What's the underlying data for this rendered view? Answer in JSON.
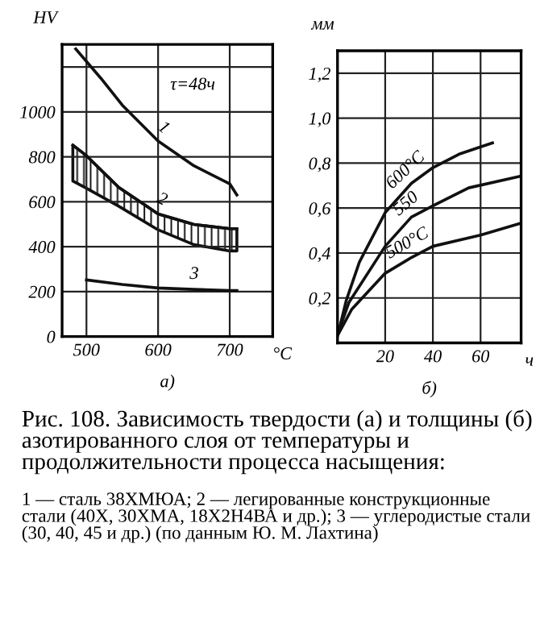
{
  "chart_data": [
    {
      "type": "line",
      "xlabel": "°C",
      "ylabel": "HV",
      "xlim": [
        466,
        760
      ],
      "ylim": [
        0,
        1300
      ],
      "xticks": [
        500,
        600,
        700
      ],
      "yticks": [
        0,
        200,
        400,
        600,
        800,
        1000,
        {
          "value": 1200,
          "label": null
        }
      ],
      "grid": true,
      "marker": "none",
      "line_style": "solid",
      "series": [
        {
          "name": "1",
          "color": "#111111",
          "x": [
            485,
            520,
            550,
            600,
            650,
            700,
            710
          ],
          "values": [
            1280,
            1150,
            1030,
            870,
            760,
            680,
            630
          ]
        },
        {
          "name": "2",
          "color": "#111111",
          "x": [
            481,
            500,
            545,
            600,
            650,
            700,
            710
          ],
          "values": [
            852,
            805,
            664,
            546,
            499,
            480,
            480
          ],
          "lower": [
            692,
            660,
            580,
            475,
            409,
            381,
            381
          ],
          "upper": [
            852,
            805,
            664,
            546,
            499,
            480,
            480
          ]
        },
        {
          "name": "3",
          "color": "#111111",
          "x": [
            500,
            550,
            600,
            650,
            700,
            710
          ],
          "values": [
            252,
            232,
            216,
            210,
            205,
            205
          ]
        }
      ],
      "annotations": [
        "τ=48ч",
        "а)"
      ]
    },
    {
      "type": "line",
      "xlabel": "ч",
      "ylabel": "мм",
      "xlim": [
        0,
        77
      ],
      "ylim": [
        0,
        1.3
      ],
      "xticks": [
        20,
        40,
        60
      ],
      "yticks": [
        {
          "value": 0.2,
          "label": "0,2"
        },
        {
          "value": 0.4,
          "label": "0,4"
        },
        {
          "value": 0.6,
          "label": "0,6"
        },
        {
          "value": 0.8,
          "label": "0,8"
        },
        {
          "value": 1.0,
          "label": "1,0"
        },
        {
          "value": 1.2,
          "label": "1,2"
        }
      ],
      "grid": true,
      "marker": "none",
      "line_style": "solid",
      "series": [
        {
          "name": "600°C",
          "color": "#111111",
          "x": [
            0,
            3.7,
            9.2,
            20,
            31,
            40,
            51,
            65
          ],
          "values": [
            0.03,
            0.19,
            0.36,
            0.58,
            0.71,
            0.78,
            0.84,
            0.89
          ]
        },
        {
          "name": "550",
          "color": "#111111",
          "x": [
            0.4,
            4.8,
            20,
            31,
            40,
            55,
            76
          ],
          "values": [
            0.05,
            0.18,
            0.43,
            0.56,
            0.61,
            0.69,
            0.74
          ]
        },
        {
          "name": "500°C",
          "color": "#111111",
          "x": [
            0.4,
            6,
            20,
            31,
            40,
            60,
            76
          ],
          "values": [
            0.04,
            0.15,
            0.31,
            0.38,
            0.43,
            0.48,
            0.53
          ]
        }
      ],
      "annotations": [
        "б)"
      ]
    },
    {
      "type": "other",
      "title": "Рис. 108. Зависимость твердости (а) и толщины (б) азотированного слоя от температуры и продолжительности процесса насыщения:",
      "annotations": [
        "1 — сталь 38ХМЮА; 2 — легированные конструкционные стали (40Х, 30ХМА, 18Х2Н4ВА и др.); 3 — углеродистые стали (30, 40, 45 и др.) (по данным Ю. М. Лахтина)"
      ]
    }
  ]
}
